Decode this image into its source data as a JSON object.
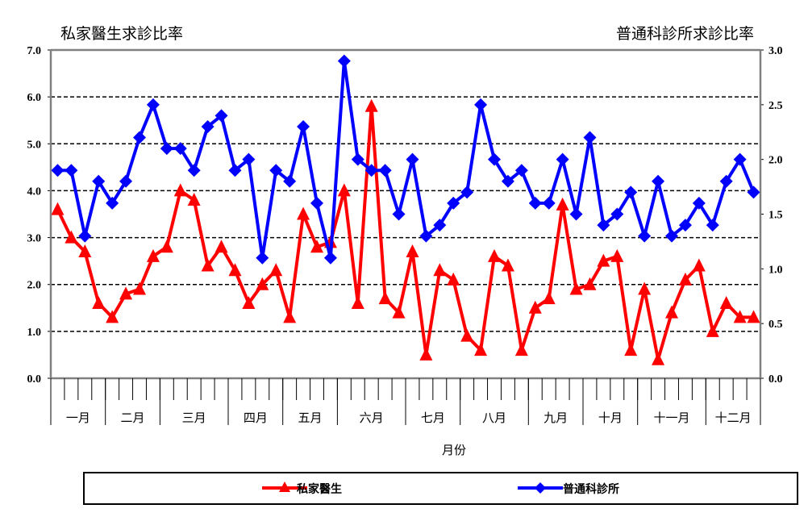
{
  "chart_data": {
    "type": "line",
    "left_title": "私家醫生求診比率",
    "right_title": "普通科診所求診比率",
    "xlabel": "月份",
    "months": [
      "一月",
      "二月",
      "三月",
      "四月",
      "五月",
      "六月",
      "七月",
      "八月",
      "九月",
      "十月",
      "十一月",
      "十二月"
    ],
    "weeks_per_month": [
      4,
      4,
      5,
      4,
      4,
      5,
      4,
      5,
      4,
      4,
      5,
      4
    ],
    "y_left": {
      "min": 0,
      "max": 7,
      "step": 1,
      "ticks": [
        "0.0",
        "1.0",
        "2.0",
        "3.0",
        "4.0",
        "5.0",
        "6.0",
        "7.0"
      ]
    },
    "y_right": {
      "min": 0,
      "max": 3,
      "step": 0.5,
      "ticks": [
        "0.0",
        "0.5",
        "1.0",
        "1.5",
        "2.0",
        "2.5",
        "3.0"
      ]
    },
    "grid": "dashed horizontal",
    "legend_position": "bottom",
    "series": [
      {
        "name": "私家醫生",
        "axis": "left",
        "color": "#ff0000",
        "marker": "triangle",
        "values": [
          3.6,
          3.0,
          2.7,
          1.6,
          1.3,
          1.8,
          1.9,
          2.6,
          2.8,
          4.0,
          3.8,
          2.4,
          2.8,
          2.3,
          1.6,
          2.0,
          2.3,
          1.3,
          3.5,
          2.8,
          2.9,
          4.0,
          1.6,
          5.8,
          1.7,
          1.4,
          2.7,
          0.5,
          2.3,
          2.1,
          0.9,
          0.6,
          2.6,
          2.4,
          0.6,
          1.5,
          1.7,
          3.7,
          1.9,
          2.0,
          2.5,
          2.6,
          0.6,
          1.9,
          0.4,
          1.4,
          2.1,
          2.4,
          1.0,
          1.6,
          1.3,
          1.3
        ]
      },
      {
        "name": "普通科診所",
        "axis": "right",
        "color": "#0000ff",
        "marker": "diamond",
        "values": [
          1.9,
          1.9,
          1.3,
          1.8,
          1.6,
          1.8,
          2.2,
          2.5,
          2.1,
          2.1,
          1.9,
          2.3,
          2.4,
          1.9,
          2.0,
          1.1,
          1.9,
          1.8,
          2.3,
          1.6,
          1.1,
          2.9,
          2.0,
          1.9,
          1.9,
          1.5,
          2.0,
          1.3,
          1.4,
          1.6,
          1.7,
          2.5,
          2.0,
          1.8,
          1.9,
          1.6,
          1.6,
          2.0,
          1.5,
          2.2,
          1.4,
          1.5,
          1.7,
          1.3,
          1.8,
          1.3,
          1.4,
          1.6,
          1.4,
          1.8,
          2.0,
          1.7
        ]
      }
    ]
  }
}
